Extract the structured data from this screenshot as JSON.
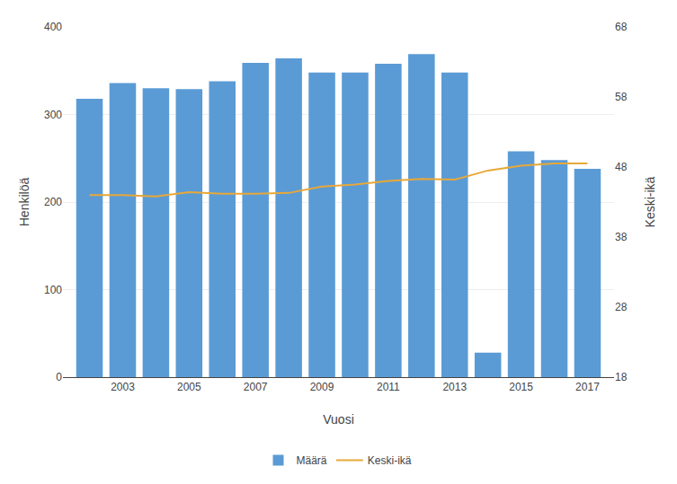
{
  "chart_data": {
    "type": "bar",
    "x": [
      2002,
      2003,
      2004,
      2005,
      2006,
      2007,
      2008,
      2009,
      2010,
      2011,
      2012,
      2013,
      2014,
      2015,
      2016,
      2017
    ],
    "series": [
      {
        "name": "Määrä",
        "type": "bar",
        "color": "#5B9BD5",
        "values": [
          318,
          336,
          330,
          329,
          338,
          359,
          364,
          348,
          348,
          358,
          369,
          348,
          28,
          258,
          248,
          238
        ]
      },
      {
        "name": "Keski-ikä",
        "type": "line",
        "axis": "y2",
        "color": "#E8A838",
        "values": [
          44.0,
          44.0,
          43.8,
          44.4,
          44.2,
          44.2,
          44.3,
          45.2,
          45.5,
          46.0,
          46.3,
          46.2,
          47.5,
          48.2,
          48.5,
          48.5
        ]
      }
    ],
    "xlabel": "Vuosi",
    "ylabel": "Henkilöä",
    "y2label": "Keski-ikä",
    "xlim": [
      2001.2,
      2017.8
    ],
    "xticks": [
      2003,
      2005,
      2007,
      2009,
      2011,
      2013,
      2015,
      2017
    ],
    "ylim": [
      0,
      400
    ],
    "yticks": [
      0,
      100,
      200,
      300,
      400
    ],
    "y2lim": [
      18,
      68
    ],
    "y2ticks": [
      18,
      28,
      38,
      48,
      58,
      68
    ],
    "grid": true,
    "legend": "bottom"
  }
}
